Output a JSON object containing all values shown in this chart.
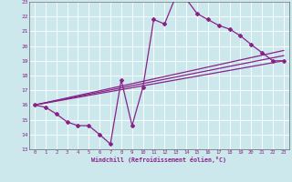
{
  "xlabel": "Windchill (Refroidissement éolien,°C)",
  "bg_color": "#cce8ec",
  "line_color": "#882288",
  "xlim": [
    -0.5,
    23.5
  ],
  "ylim": [
    13,
    23
  ],
  "xticks": [
    0,
    1,
    2,
    3,
    4,
    5,
    6,
    7,
    8,
    9,
    10,
    11,
    12,
    13,
    14,
    15,
    16,
    17,
    18,
    19,
    20,
    21,
    22,
    23
  ],
  "yticks": [
    13,
    14,
    15,
    16,
    17,
    18,
    19,
    20,
    21,
    22,
    23
  ],
  "line1_x": [
    0,
    1,
    2,
    3,
    4,
    5,
    6,
    7,
    8,
    9,
    10,
    11,
    12,
    13,
    14,
    15,
    16,
    17,
    18,
    19,
    20,
    21,
    22,
    23
  ],
  "line1_y": [
    16.0,
    15.85,
    15.4,
    14.85,
    14.6,
    14.6,
    14.0,
    13.35,
    17.7,
    14.6,
    17.2,
    21.8,
    21.5,
    23.3,
    23.2,
    22.2,
    21.8,
    21.4,
    21.15,
    20.7,
    20.1,
    19.55,
    19.0,
    19.0
  ],
  "line2_x": [
    0,
    23
  ],
  "line2_y": [
    16.0,
    19.0
  ],
  "line3_x": [
    0,
    23
  ],
  "line3_y": [
    16.0,
    19.35
  ],
  "line4_x": [
    0,
    23
  ],
  "line4_y": [
    16.0,
    19.7
  ]
}
